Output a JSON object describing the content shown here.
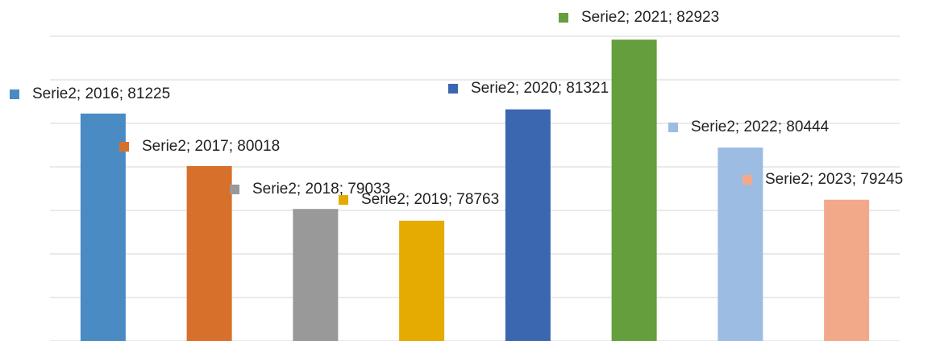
{
  "chart_data": {
    "type": "bar",
    "series_name": "Serie2",
    "categories": [
      "2016",
      "2017",
      "2018",
      "2019",
      "2020",
      "2021",
      "2022",
      "2023"
    ],
    "values": [
      81225,
      80018,
      79033,
      78763,
      81321,
      82923,
      80444,
      79245
    ],
    "value_labels": [
      "Serie2; 2016; 81225",
      "Serie2; 2017; 80018",
      "Serie2; 2018; 79033",
      "Serie2; 2019; 78763",
      "Serie2; 2020; 81321",
      "Serie2; 2021; 82923",
      "Serie2; 2022; 80444",
      "Serie2; 2023; 79245"
    ],
    "colors": [
      "#4a8bc4",
      "#d6702a",
      "#999999",
      "#e5ab00",
      "#3b66b0",
      "#659e3d",
      "#9dbce3",
      "#f2a98a"
    ],
    "ylim": [
      76000,
      83000
    ],
    "yticks": [
      76000,
      77000,
      78000,
      79000,
      80000,
      81000,
      82000,
      83000
    ],
    "grid": true
  }
}
